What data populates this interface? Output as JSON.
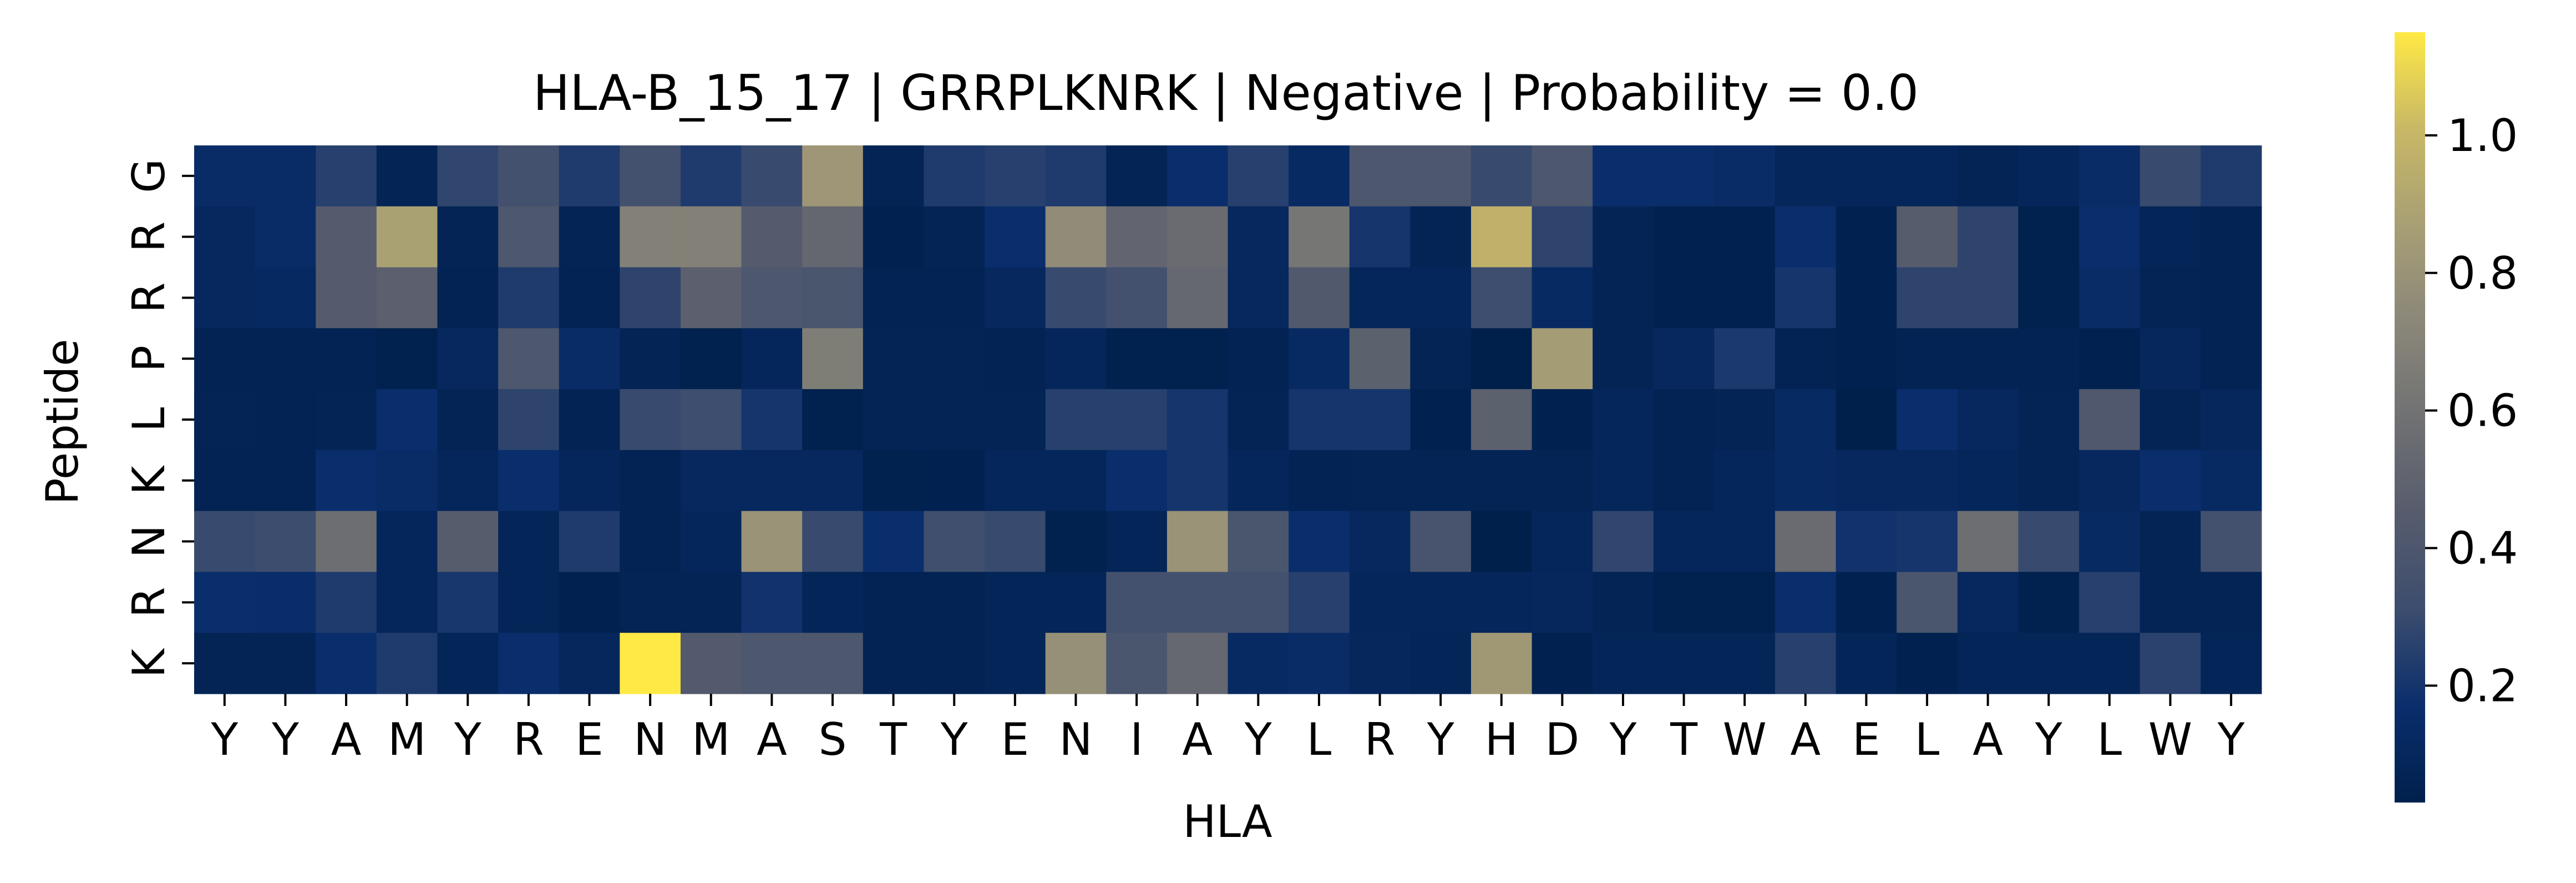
{
  "chart_data": {
    "type": "heatmap",
    "title": "HLA-B_15_17 | GRRPLKNRK | Negative | Probability = 0.0",
    "xlabel": "HLA",
    "ylabel": "Peptide",
    "x_categories": [
      "Y",
      "Y",
      "A",
      "M",
      "Y",
      "R",
      "E",
      "N",
      "M",
      "A",
      "S",
      "T",
      "Y",
      "E",
      "N",
      "I",
      "A",
      "Y",
      "L",
      "R",
      "Y",
      "H",
      "D",
      "Y",
      "T",
      "W",
      "A",
      "E",
      "L",
      "A",
      "Y",
      "L",
      "W",
      "Y"
    ],
    "y_categories": [
      "G",
      "R",
      "R",
      "P",
      "L",
      "K",
      "N",
      "R",
      "K"
    ],
    "values": [
      [
        0.15,
        0.15,
        0.25,
        0.07,
        0.28,
        0.35,
        0.23,
        0.35,
        0.23,
        0.3,
        0.82,
        0.07,
        0.23,
        0.25,
        0.23,
        0.07,
        0.17,
        0.25,
        0.13,
        0.4,
        0.4,
        0.3,
        0.4,
        0.17,
        0.17,
        0.15,
        0.09,
        0.09,
        0.09,
        0.07,
        0.09,
        0.15,
        0.3,
        0.23
      ],
      [
        0.11,
        0.15,
        0.44,
        0.88,
        0.07,
        0.4,
        0.07,
        0.69,
        0.69,
        0.44,
        0.52,
        0.05,
        0.07,
        0.17,
        0.76,
        0.51,
        0.55,
        0.11,
        0.62,
        0.2,
        0.07,
        0.97,
        0.27,
        0.07,
        0.05,
        0.05,
        0.17,
        0.05,
        0.45,
        0.27,
        0.04,
        0.17,
        0.08,
        0.06
      ],
      [
        0.11,
        0.12,
        0.44,
        0.47,
        0.06,
        0.23,
        0.06,
        0.27,
        0.47,
        0.4,
        0.38,
        0.06,
        0.06,
        0.11,
        0.3,
        0.35,
        0.53,
        0.11,
        0.42,
        0.09,
        0.09,
        0.32,
        0.13,
        0.07,
        0.05,
        0.05,
        0.2,
        0.05,
        0.27,
        0.27,
        0.04,
        0.15,
        0.07,
        0.06
      ],
      [
        0.06,
        0.06,
        0.06,
        0.04,
        0.11,
        0.4,
        0.15,
        0.07,
        0.04,
        0.09,
        0.67,
        0.07,
        0.07,
        0.06,
        0.09,
        0.04,
        0.04,
        0.06,
        0.13,
        0.48,
        0.07,
        0.03,
        0.85,
        0.07,
        0.11,
        0.22,
        0.06,
        0.05,
        0.06,
        0.06,
        0.06,
        0.05,
        0.1,
        0.06
      ],
      [
        0.07,
        0.06,
        0.07,
        0.17,
        0.07,
        0.27,
        0.06,
        0.3,
        0.32,
        0.2,
        0.04,
        0.07,
        0.07,
        0.07,
        0.25,
        0.25,
        0.2,
        0.07,
        0.2,
        0.2,
        0.05,
        0.48,
        0.05,
        0.09,
        0.06,
        0.07,
        0.13,
        0.03,
        0.17,
        0.11,
        0.07,
        0.41,
        0.07,
        0.1
      ],
      [
        0.06,
        0.06,
        0.17,
        0.15,
        0.09,
        0.17,
        0.09,
        0.06,
        0.11,
        0.11,
        0.11,
        0.04,
        0.05,
        0.09,
        0.09,
        0.17,
        0.2,
        0.09,
        0.06,
        0.07,
        0.07,
        0.07,
        0.07,
        0.09,
        0.06,
        0.09,
        0.13,
        0.11,
        0.11,
        0.09,
        0.07,
        0.11,
        0.17,
        0.13
      ],
      [
        0.3,
        0.31,
        0.57,
        0.09,
        0.45,
        0.08,
        0.23,
        0.06,
        0.09,
        0.8,
        0.3,
        0.17,
        0.33,
        0.3,
        0.04,
        0.08,
        0.8,
        0.38,
        0.17,
        0.11,
        0.37,
        0.03,
        0.09,
        0.28,
        0.09,
        0.09,
        0.55,
        0.19,
        0.2,
        0.57,
        0.3,
        0.13,
        0.07,
        0.35
      ],
      [
        0.17,
        0.16,
        0.23,
        0.09,
        0.21,
        0.08,
        0.05,
        0.07,
        0.07,
        0.19,
        0.08,
        0.06,
        0.06,
        0.08,
        0.08,
        0.35,
        0.35,
        0.35,
        0.25,
        0.09,
        0.09,
        0.09,
        0.1,
        0.07,
        0.04,
        0.04,
        0.17,
        0.05,
        0.38,
        0.11,
        0.04,
        0.25,
        0.07,
        0.07
      ],
      [
        0.07,
        0.07,
        0.17,
        0.23,
        0.08,
        0.17,
        0.1,
        1.15,
        0.43,
        0.4,
        0.4,
        0.06,
        0.06,
        0.08,
        0.78,
        0.38,
        0.53,
        0.13,
        0.15,
        0.1,
        0.08,
        0.83,
        0.05,
        0.08,
        0.08,
        0.08,
        0.25,
        0.08,
        0.05,
        0.08,
        0.08,
        0.08,
        0.26,
        0.08
      ]
    ],
    "colormap": "cividis",
    "colorbar": {
      "vmin": 0.03,
      "vmax": 1.15,
      "ticks": [
        "0.2",
        "0.4",
        "0.6",
        "0.8",
        "1.0"
      ]
    }
  }
}
